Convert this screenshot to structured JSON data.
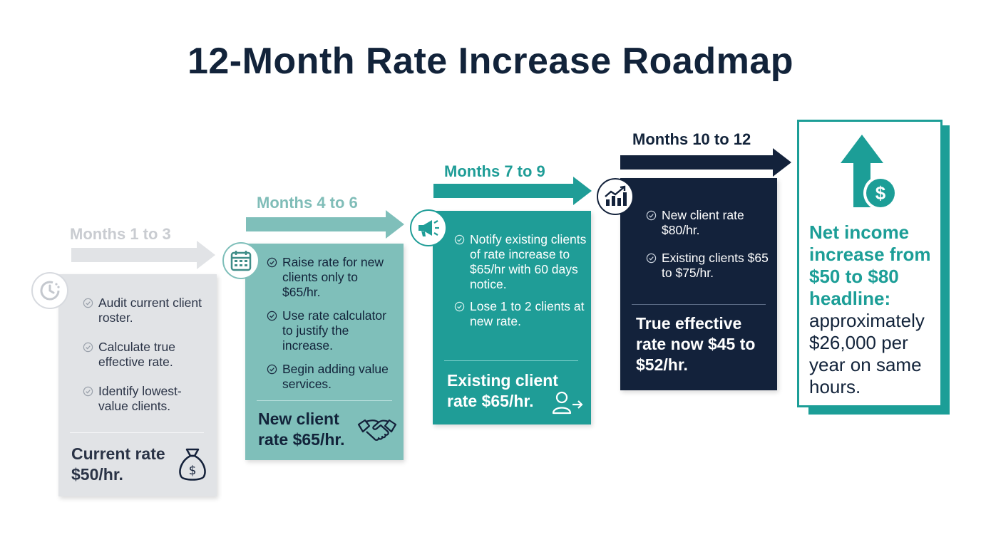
{
  "title": "12-Month Rate Increase Roadmap",
  "stages": [
    {
      "label": "Months 1 to 3",
      "icon": "clock-icon",
      "items": [
        "Audit current client roster.",
        "Calculate true effective rate.",
        "Identify lowest-value clients."
      ],
      "summary": "Current rate $50/hr.",
      "summary_icon": "money-bag-icon"
    },
    {
      "label": "Months 4 to 6",
      "icon": "calendar-icon",
      "items": [
        "Raise rate for new clients only to $65/hr.",
        "Use rate calculator to justify the increase.",
        "Begin adding value services."
      ],
      "summary": "New client rate $65/hr.",
      "summary_icon": "handshake-icon"
    },
    {
      "label": "Months 7 to 9",
      "icon": "megaphone-icon",
      "items": [
        "Notify existing clients of rate increase to $65/hr with 60 days notice.",
        "Lose 1 to 2 clients at new rate."
      ],
      "summary": "Existing client rate $65/hr.",
      "summary_icon": "user-arrow-icon"
    },
    {
      "label": "Months 10 to 12",
      "icon": "growth-chart-icon",
      "items": [
        "New client rate $80/hr.",
        "Existing clients $65 to $75/hr."
      ],
      "summary": "True effective rate now $45 to $52/hr.",
      "summary_icon": ""
    }
  ],
  "final": {
    "highlight": "Net income increase from $50 to $80 headline:",
    "text": "approximately $26,000 per year on same hours.",
    "icon": "arrow-up-dollar-icon"
  },
  "colors": {
    "stage1": "#e1e3e6",
    "stage2": "#7fbfba",
    "stage3": "#1f9d97",
    "stage4": "#13223b",
    "accent": "#1c9e97",
    "title": "#12233a"
  }
}
